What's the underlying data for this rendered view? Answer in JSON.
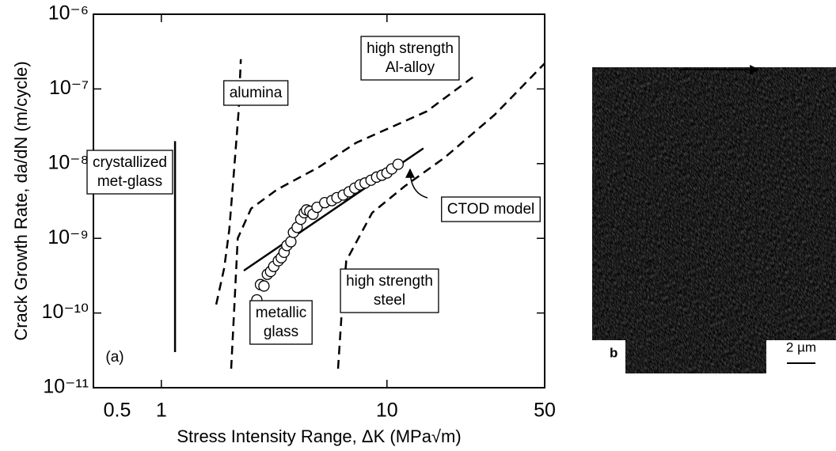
{
  "chart_data": {
    "type": "line",
    "x_label": "Stress Intensity Range, ΔK (MPa√m)",
    "y_label": "Crack Growth Rate, da/dN (m/cycle)",
    "log_x": true,
    "log_y": true,
    "xlim": [
      0.5,
      50
    ],
    "xticks": [
      0.5,
      1,
      10,
      50
    ],
    "ylim": [
      1e-11,
      1e-06
    ],
    "yticks": [
      {
        "value": 1e-11,
        "label": "10⁻¹¹"
      },
      {
        "value": 1e-10,
        "label": "10⁻¹⁰"
      },
      {
        "value": 1e-09,
        "label": "10⁻⁹"
      },
      {
        "value": 1e-08,
        "label": "10⁻⁸"
      },
      {
        "value": 1e-07,
        "label": "10⁻⁷"
      },
      {
        "value": 1e-06,
        "label": "10⁻⁶"
      }
    ],
    "series": [
      {
        "style": "solid",
        "color": "#000000",
        "x": [
          1.15,
          1.15
        ],
        "values": [
          3e-11,
          2e-08
        ]
      },
      {
        "style": "dashed",
        "color": "#000000",
        "x": [
          1.75,
          1.9,
          2.0,
          2.1,
          2.2,
          2.25
        ],
        "values": [
          1.3e-10,
          4e-10,
          1.3e-09,
          8e-09,
          5e-08,
          2.5e-07
        ]
      },
      {
        "style": "dashed",
        "color": "#000000",
        "x": [
          2.04,
          2.1,
          2.18,
          2.5,
          3.26,
          5,
          7.3,
          15,
          24.5
        ],
        "values": [
          1.8e-11,
          1e-10,
          1e-09,
          2.5e-09,
          4.5e-09,
          9e-09,
          1.9e-08,
          5e-08,
          1.5e-07
        ]
      },
      {
        "style": "dashed",
        "color": "#000000",
        "x": [
          6.07,
          6.3,
          6.6,
          8.6,
          12,
          18,
          30,
          50
        ],
        "values": [
          1.8e-11,
          1e-10,
          5e-10,
          2.2e-09,
          5e-09,
          1.2e-08,
          4.5e-08,
          2.2e-07
        ]
      },
      {
        "style": "solid",
        "color": "#000000",
        "x": [
          2.32,
          14.5
        ],
        "values": [
          3.7e-10,
          1.6e-08
        ]
      },
      {
        "style": "markers",
        "color": "#000000",
        "x": [
          2.65,
          2.75,
          2.85,
          2.95,
          3.05,
          3.15,
          3.3,
          3.4,
          3.5,
          3.6,
          3.75,
          3.85,
          4.0,
          4.15,
          4.3,
          4.4,
          4.55,
          4.7,
          4.9,
          5.3,
          5.7,
          6.0,
          6.4,
          6.8,
          7.2,
          7.6,
          8.0,
          8.5,
          9.0,
          9.5,
          10.0,
          10.5,
          11.2
        ],
        "values": [
          1.5e-10,
          2.4e-10,
          2.3e-10,
          3.3e-10,
          3.6e-10,
          4.2e-10,
          5e-10,
          5.5e-10,
          6.5e-10,
          8e-10,
          9e-10,
          1.2e-09,
          1.4e-09,
          1.8e-09,
          2.2e-09,
          2.4e-09,
          2.3e-09,
          2.1e-09,
          2.6e-09,
          3e-09,
          3.2e-09,
          3.5e-09,
          3.8e-09,
          4.2e-09,
          4.7e-09,
          5.2e-09,
          5.5e-09,
          6e-09,
          6.6e-09,
          7e-09,
          7.5e-09,
          8.5e-09,
          9.8e-09
        ]
      }
    ],
    "annotations": [
      {
        "lines": [
          "crystallized",
          "met-glass"
        ]
      },
      {
        "lines": [
          "alumina"
        ]
      },
      {
        "lines": [
          "high strength",
          "Al-alloy"
        ]
      },
      {
        "lines": [
          "CTOD model"
        ]
      },
      {
        "lines": [
          "high strength",
          "steel"
        ]
      },
      {
        "lines": [
          "metallic",
          "glass"
        ]
      },
      {
        "lines": [
          "(a)"
        ]
      }
    ]
  },
  "panel_b": {
    "label": "b",
    "scale_bar": "2 µm"
  }
}
